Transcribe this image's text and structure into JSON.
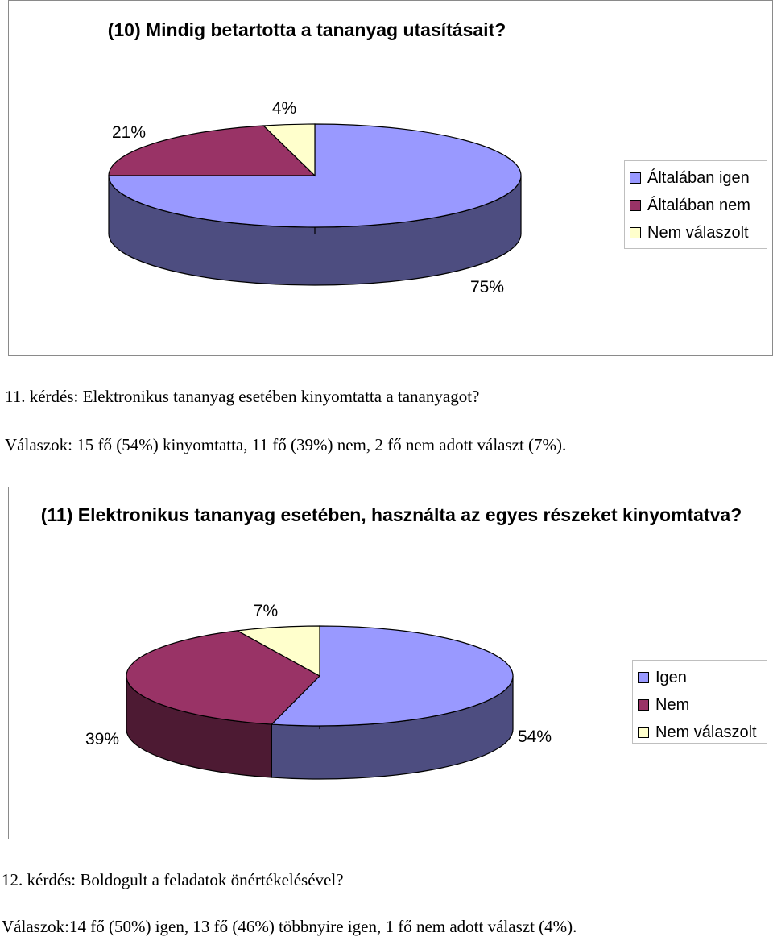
{
  "chart_data": [
    {
      "type": "pie",
      "title": "(10) Mindig betartotta a tananyag utasításait?",
      "categories": [
        "Általában igen",
        "Általában nem",
        "Nem válaszolt"
      ],
      "values": [
        75,
        21,
        4
      ],
      "labels": [
        "75%",
        "21%",
        "4%"
      ],
      "colors": [
        "#9999FF",
        "#993366",
        "#FFFFCC"
      ],
      "side_colors": [
        "#4D4D80",
        "#4D1A33",
        "#80806A"
      ],
      "legend_position": "right"
    },
    {
      "type": "pie",
      "title": "(11) Elektronikus tananyag esetében, használta az egyes részeket kinyomtatva?",
      "categories": [
        "Igen",
        "Nem",
        "Nem válaszolt"
      ],
      "values": [
        54,
        39,
        7
      ],
      "labels": [
        "54%",
        "39%",
        "7%"
      ],
      "colors": [
        "#9999FF",
        "#993366",
        "#FFFFCC"
      ],
      "side_colors": [
        "#4D4D80",
        "#4D1A33",
        "#80806A"
      ],
      "legend_position": "right"
    }
  ],
  "text": {
    "q11": "11. kérdés: Elektronikus tananyag esetében kinyomtatta a tananyagot?",
    "ans11": "Válaszok: 15 fő (54%) kinyomtatta, 11 fő (39%) nem, 2 fő nem adott választ (7%).",
    "q12": "12. kérdés: Boldogult a feladatok önértékelésével?",
    "ans12": "Válaszok:14 fő (50%) igen, 13 fő (46%) többnyire igen, 1 fő nem adott választ (4%)."
  }
}
